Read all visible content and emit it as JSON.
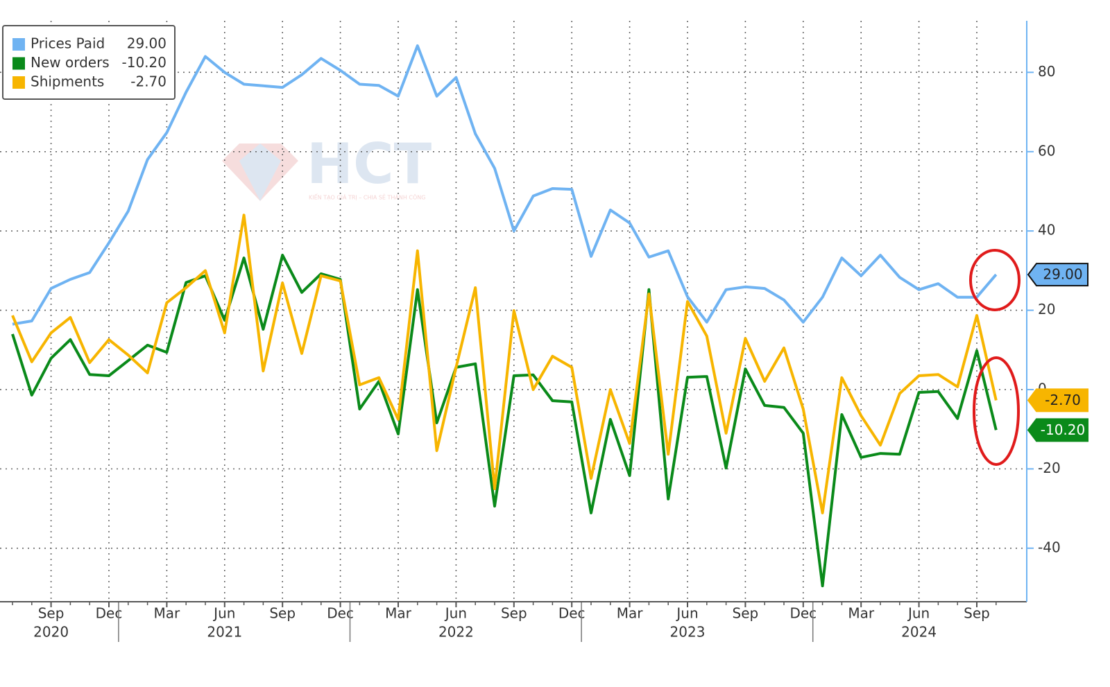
{
  "chart_data": {
    "type": "line",
    "x": [
      "2020-07",
      "2020-08",
      "2020-09",
      "2020-10",
      "2020-11",
      "2020-12",
      "2021-01",
      "2021-02",
      "2021-03",
      "2021-04",
      "2021-05",
      "2021-06",
      "2021-07",
      "2021-08",
      "2021-09",
      "2021-10",
      "2021-11",
      "2021-12",
      "2022-01",
      "2022-02",
      "2022-03",
      "2022-04",
      "2022-05",
      "2022-06",
      "2022-07",
      "2022-08",
      "2022-09",
      "2022-10",
      "2022-11",
      "2022-12",
      "2023-01",
      "2023-02",
      "2023-03",
      "2023-04",
      "2023-05",
      "2023-06",
      "2023-07",
      "2023-08",
      "2023-09",
      "2023-10",
      "2023-11",
      "2023-12",
      "2024-01",
      "2024-02",
      "2024-03",
      "2024-04",
      "2024-05",
      "2024-06",
      "2024-07",
      "2024-08",
      "2024-09",
      "2024-10"
    ],
    "series": [
      {
        "name": "Prices Paid",
        "color": "#6fb3f2",
        "last_label": "29.00",
        "values": [
          16.5,
          17.3,
          25.5,
          27.8,
          29.5,
          37,
          45,
          58,
          64.8,
          75,
          84,
          80,
          77,
          76.6,
          76.2,
          79.4,
          83.5,
          80.5,
          77,
          76.7,
          74,
          86.7,
          74,
          78.7,
          64.5,
          55.8,
          40,
          48.8,
          50.7,
          50.5,
          33.6,
          45.3,
          42,
          33.4,
          35,
          23.4,
          17,
          25.2,
          25.9,
          25.5,
          22.6,
          17,
          23.3,
          33.2,
          28.7,
          33.9,
          28.3,
          25.2,
          26.7,
          23.3,
          23.3,
          29
        ]
      },
      {
        "name": "New orders",
        "color": "#0a8a1a",
        "last_label": "-10.20",
        "values": [
          14,
          -1.4,
          7.9,
          12.6,
          3.8,
          3.5,
          7.3,
          11.2,
          9.4,
          27,
          28.7,
          17.5,
          33.2,
          15.2,
          33.9,
          24.5,
          29.2,
          27.8,
          -4.9,
          2.1,
          -11.2,
          25.2,
          -8.4,
          5.6,
          6.5,
          -29.4,
          3.5,
          3.7,
          -2.8,
          -3.1,
          -31.1,
          -7.5,
          -21.7,
          25.2,
          -27.6,
          3.1,
          3.3,
          -19.8,
          5.2,
          -4,
          -4.5,
          -11,
          -49.5,
          -6.3,
          -17.1,
          -16.1,
          -16.3,
          -0.7,
          -0.5,
          -7.3,
          9.8,
          -10.2
        ]
      },
      {
        "name": "Shipments",
        "color": "#f7b500",
        "last_label": "-2.70",
        "values": [
          18.7,
          7,
          14.3,
          18.2,
          6.8,
          12.6,
          8.7,
          4.2,
          21.9,
          25.7,
          30,
          14.3,
          44,
          4.7,
          26.9,
          9.1,
          28.7,
          27.4,
          1.2,
          3,
          -7.5,
          35,
          -15.4,
          5.6,
          25.7,
          -25,
          19.9,
          0,
          8.4,
          5.6,
          -22.4,
          0,
          -13.6,
          24.1,
          -16.3,
          22.2,
          13.5,
          -11,
          12.9,
          2.1,
          10.5,
          -4.9,
          -31.1,
          3,
          -6.6,
          -14,
          -1,
          3.5,
          3.8,
          0.7,
          18.7,
          -2.7
        ]
      }
    ],
    "ylim": [
      -53.5,
      93
    ],
    "yticks": [
      -40,
      -20,
      0,
      20,
      40,
      60,
      80
    ],
    "y_axis_side": "right",
    "grid": true,
    "legend": "top-left",
    "xticks": [
      {
        "value": "2020-09",
        "label": "Sep"
      },
      {
        "value": "2020-12",
        "label": "Dec"
      },
      {
        "value": "2021-03",
        "label": "Mar"
      },
      {
        "value": "2021-06",
        "label": "Jun"
      },
      {
        "value": "2021-09",
        "label": "Sep"
      },
      {
        "value": "2021-12",
        "label": "Dec"
      },
      {
        "value": "2022-03",
        "label": "Mar"
      },
      {
        "value": "2022-06",
        "label": "Jun"
      },
      {
        "value": "2022-09",
        "label": "Sep"
      },
      {
        "value": "2022-12",
        "label": "Dec"
      },
      {
        "value": "2023-03",
        "label": "Mar"
      },
      {
        "value": "2023-06",
        "label": "Jun"
      },
      {
        "value": "2023-09",
        "label": "Sep"
      },
      {
        "value": "2023-12",
        "label": "Dec"
      },
      {
        "value": "2024-03",
        "label": "Mar"
      },
      {
        "value": "2024-06",
        "label": "Jun"
      },
      {
        "value": "2024-09",
        "label": "Sep"
      }
    ],
    "year_ticks": [
      {
        "value": "2020-09",
        "label": "2020"
      },
      {
        "value": "2021-06",
        "label": "2021"
      },
      {
        "value": "2022-06",
        "label": "2022"
      },
      {
        "value": "2023-06",
        "label": "2023"
      },
      {
        "value": "2024-06",
        "label": "2024"
      }
    ],
    "watermark": {
      "title": "HCT",
      "tagline": "KIẾN TẠO GIÁ TRỊ – CHIA SẺ THÀNH CÔNG"
    }
  }
}
